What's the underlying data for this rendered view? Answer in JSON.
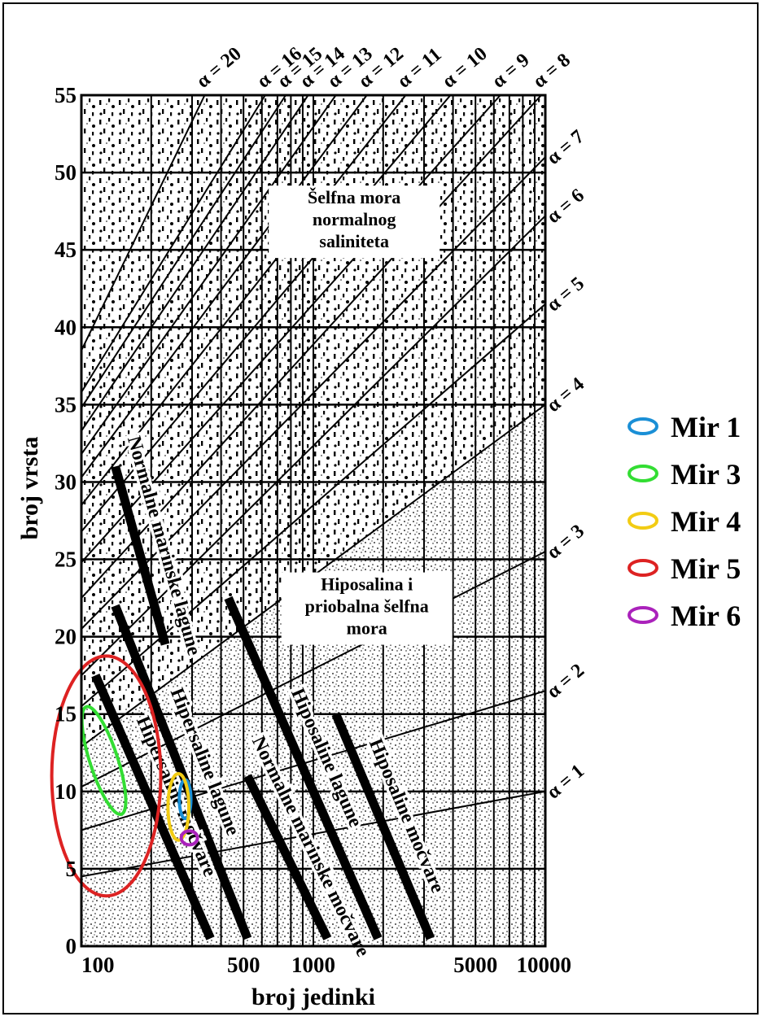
{
  "chart_data": {
    "type": "line",
    "title": "",
    "xlabel": "broj jedinki",
    "ylabel": "broj vrsta",
    "x_scale": "log",
    "xlim": [
      100,
      10000
    ],
    "ylim": [
      0,
      55
    ],
    "x_ticks": [
      {
        "value": 100,
        "label": "100"
      },
      {
        "value": 500,
        "label": "500"
      },
      {
        "value": 1000,
        "label": "1000"
      },
      {
        "value": 5000,
        "label": "5000"
      },
      {
        "value": 10000,
        "label": "10000"
      }
    ],
    "y_ticks": [
      {
        "value": 0,
        "label": "0"
      },
      {
        "value": 5,
        "label": "5"
      },
      {
        "value": 10,
        "label": "10"
      },
      {
        "value": 15,
        "label": "15"
      },
      {
        "value": 20,
        "label": "20"
      },
      {
        "value": 25,
        "label": "25"
      },
      {
        "value": 30,
        "label": "30"
      },
      {
        "value": 35,
        "label": "35"
      },
      {
        "value": 40,
        "label": "40"
      },
      {
        "value": 45,
        "label": "45"
      },
      {
        "value": 50,
        "label": "50"
      },
      {
        "value": 55,
        "label": "55"
      }
    ],
    "x_gridlines": [
      100,
      200,
      300,
      400,
      500,
      600,
      700,
      800,
      900,
      1000,
      2000,
      3000,
      4000,
      5000,
      6000,
      7000,
      8000,
      9000,
      10000
    ],
    "grid": true,
    "alpha_isolines": [
      {
        "label": "α = 1",
        "points": [
          [
            100,
            4.5
          ],
          [
            10000,
            10
          ]
        ]
      },
      {
        "label": "α = 2",
        "points": [
          [
            100,
            7.5
          ],
          [
            10000,
            16.5
          ]
        ]
      },
      {
        "label": "α = 3",
        "points": [
          [
            100,
            10.3
          ],
          [
            10000,
            25.5
          ]
        ]
      },
      {
        "label": "α = 4",
        "points": [
          [
            100,
            12.9
          ],
          [
            10000,
            35
          ]
        ]
      },
      {
        "label": "α = 5",
        "points": [
          [
            100,
            15.5
          ],
          [
            10000,
            41.5
          ]
        ]
      },
      {
        "label": "α = 6",
        "points": [
          [
            100,
            17.5
          ],
          [
            10000,
            47.2
          ]
        ]
      },
      {
        "label": "α = 7",
        "points": [
          [
            100,
            20.5
          ],
          [
            10000,
            51
          ]
        ]
      },
      {
        "label": "α = 8",
        "points": [
          [
            100,
            22.5
          ],
          [
            9600,
            55
          ]
        ]
      },
      {
        "label": "α = 9",
        "points": [
          [
            100,
            24.8
          ],
          [
            6400,
            55
          ]
        ]
      },
      {
        "label": "α = 10",
        "points": [
          [
            100,
            26.8
          ],
          [
            3900,
            55
          ]
        ]
      },
      {
        "label": "α = 11",
        "points": [
          [
            100,
            28.5
          ],
          [
            2500,
            55
          ]
        ]
      },
      {
        "label": "α = 12",
        "points": [
          [
            100,
            30.3
          ],
          [
            1700,
            55
          ]
        ]
      },
      {
        "label": "α = 13",
        "points": [
          [
            100,
            31.8
          ],
          [
            1250,
            55
          ]
        ]
      },
      {
        "label": "α = 14",
        "points": [
          [
            100,
            33.3
          ],
          [
            950,
            55
          ]
        ]
      },
      {
        "label": "α = 15",
        "points": [
          [
            100,
            34.8
          ],
          [
            760,
            55
          ]
        ]
      },
      {
        "label": "α = 16",
        "points": [
          [
            100,
            35.8
          ],
          [
            620,
            55
          ]
        ]
      },
      {
        "label": "α = 20",
        "points": [
          [
            100,
            38.5
          ],
          [
            340,
            55
          ]
        ]
      }
    ],
    "zone_bands": [
      {
        "label": "Normalne marinske lagune",
        "points": [
          [
            140,
            31
          ],
          [
            230,
            19.5
          ]
        ]
      },
      {
        "label": "Hipersaline lagune",
        "points": [
          [
            140,
            22
          ],
          [
            520,
            0.5
          ]
        ]
      },
      {
        "label": "Hipersaline močvare",
        "points": [
          [
            115,
            17.5
          ],
          [
            360,
            0.5
          ]
        ]
      },
      {
        "label": "Hiposaline lagune",
        "points": [
          [
            430,
            22.5
          ],
          [
            1900,
            0.5
          ]
        ]
      },
      {
        "label": "Normalne marinske močvare",
        "points": [
          [
            520,
            11
          ],
          [
            1150,
            0.5
          ]
        ]
      },
      {
        "label": "Hiposaline močvare",
        "points": [
          [
            1250,
            15
          ],
          [
            3200,
            0.5
          ]
        ]
      }
    ],
    "environment_regions": [
      {
        "label_lines": [
          "Šelfna mora",
          "normalnog",
          "saliniteta"
        ],
        "x": 1500,
        "y": 48
      },
      {
        "label_lines": [
          "Hiposalina i",
          "priobalna šelfna",
          "mora"
        ],
        "x": 1700,
        "y": 23
      }
    ],
    "sample_ellipses": [
      {
        "name": "Mir 1",
        "color": "#1a8fd6",
        "center": [
          280,
          9.5
        ],
        "span_x_log": 0.05,
        "span_y": 2.5
      },
      {
        "name": "Mir 3",
        "color": "#33dd33",
        "center": [
          125,
          12
        ],
        "span_x_log": 0.12,
        "span_y": 7.3
      },
      {
        "name": "Mir 4",
        "color": "#f2cc14",
        "center": [
          262,
          9
        ],
        "span_x_log": 0.09,
        "span_y": 4.3
      },
      {
        "name": "Mir 5",
        "color": "#dd2222",
        "center": [
          128,
          11
        ],
        "span_x_log": 0.47,
        "span_y": 15.5
      },
      {
        "name": "Mir 6",
        "color": "#aa22bb",
        "center": [
          292,
          7
        ],
        "span_x_log": 0.07,
        "span_y": 0.9
      }
    ],
    "legend_position": "right"
  }
}
